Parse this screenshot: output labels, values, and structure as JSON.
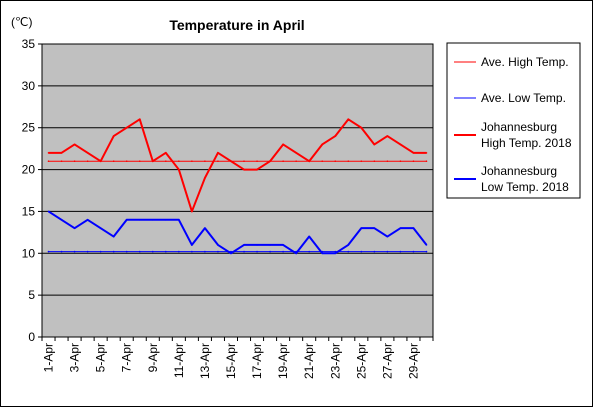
{
  "chart_data": {
    "type": "line",
    "title": "Temperature in April",
    "unit_label": "(℃)",
    "ylim": [
      0,
      35
    ],
    "y_ticks": [
      0,
      5,
      10,
      15,
      20,
      25,
      30,
      35
    ],
    "grid": true,
    "plot_background": "#c0c0c0",
    "legend_position": "right",
    "x": [
      "1-Apr",
      "2-Apr",
      "3-Apr",
      "4-Apr",
      "5-Apr",
      "6-Apr",
      "7-Apr",
      "8-Apr",
      "9-Apr",
      "10-Apr",
      "11-Apr",
      "12-Apr",
      "13-Apr",
      "14-Apr",
      "15-Apr",
      "16-Apr",
      "17-Apr",
      "18-Apr",
      "19-Apr",
      "20-Apr",
      "21-Apr",
      "22-Apr",
      "23-Apr",
      "24-Apr",
      "25-Apr",
      "26-Apr",
      "27-Apr",
      "28-Apr",
      "29-Apr",
      "30-Apr"
    ],
    "x_tick_labels": [
      "1-Apr",
      "3-Apr",
      "5-Apr",
      "7-Apr",
      "9-Apr",
      "11-Apr",
      "13-Apr",
      "15-Apr",
      "17-Apr",
      "19-Apr",
      "21-Apr",
      "23-Apr",
      "25-Apr",
      "27-Apr",
      "29-Apr"
    ],
    "series": [
      {
        "name": "Ave. High Temp.",
        "color": "#ff0000",
        "width": 1,
        "values": [
          21,
          21,
          21,
          21,
          21,
          21,
          21,
          21,
          21,
          21,
          21,
          21,
          21,
          21,
          21,
          21,
          21,
          21,
          21,
          21,
          21,
          21,
          21,
          21,
          21,
          21,
          21,
          21,
          21,
          21
        ]
      },
      {
        "name": "Ave. Low Temp.",
        "color": "#0000ff",
        "width": 1,
        "values": [
          10.2,
          10.2,
          10.2,
          10.2,
          10.2,
          10.2,
          10.2,
          10.2,
          10.2,
          10.2,
          10.2,
          10.2,
          10.2,
          10.2,
          10.2,
          10.2,
          10.2,
          10.2,
          10.2,
          10.2,
          10.2,
          10.2,
          10.2,
          10.2,
          10.2,
          10.2,
          10.2,
          10.2,
          10.2,
          10.2
        ]
      },
      {
        "name": "Johannesburg High Temp. 2018",
        "legend_lines": [
          "Johannesburg",
          "High Temp. 2018"
        ],
        "color": "#ff0000",
        "width": 2,
        "values": [
          22,
          22,
          23,
          22,
          21,
          24,
          25,
          26,
          21,
          22,
          20,
          15,
          19,
          22,
          21,
          20,
          20,
          21,
          23,
          22,
          21,
          23,
          24,
          26,
          25,
          23,
          24,
          23,
          22,
          22
        ]
      },
      {
        "name": "Johannesburg Low Temp. 2018",
        "legend_lines": [
          "Johannesburg",
          "Low Temp. 2018"
        ],
        "color": "#0000ff",
        "width": 2,
        "values": [
          15,
          14,
          13,
          14,
          13,
          12,
          14,
          14,
          14,
          14,
          14,
          11,
          13,
          11,
          10,
          11,
          11,
          11,
          11,
          10,
          12,
          10,
          10,
          11,
          13,
          13,
          12,
          13,
          13,
          11
        ]
      }
    ]
  }
}
